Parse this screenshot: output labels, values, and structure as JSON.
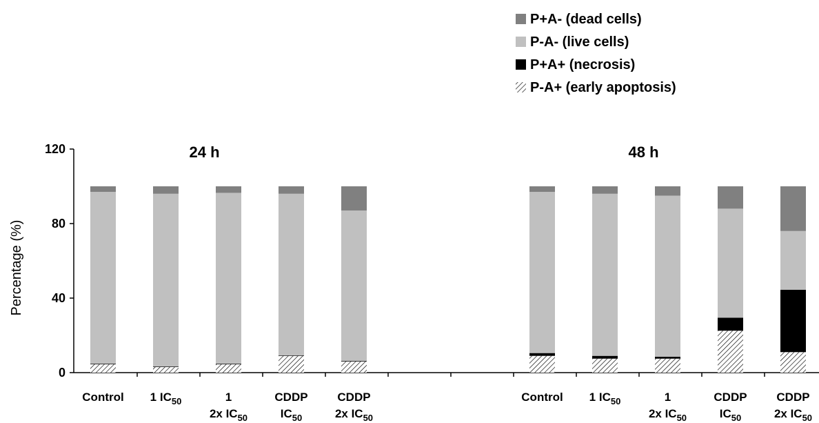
{
  "chart_data": {
    "type": "bar",
    "stacked": true,
    "ylabel": "Percentage (%)",
    "ylim": [
      0,
      120
    ],
    "yticks": [
      0,
      40,
      80,
      120
    ],
    "grid": false,
    "legend_position": "top-right",
    "panels": [
      "24 h",
      "48 h"
    ],
    "categories": [
      {
        "line1": "Control",
        "line2": "",
        "sub": ""
      },
      {
        "line1": "1 IC",
        "line2": "",
        "sub": "50"
      },
      {
        "line1": "1",
        "line2": "2x IC",
        "sub": "50"
      },
      {
        "line1": "CDDP",
        "line2": "IC",
        "sub": "50"
      },
      {
        "line1": "CDDP",
        "line2": "2x IC",
        "sub": "50"
      }
    ],
    "series": [
      {
        "name": "P-A+ (early apoptosis)",
        "key": "early",
        "color": "#ffffff",
        "pattern": "hatch",
        "values_24h": [
          4.5,
          3,
          4.5,
          9,
          6
        ],
        "values_48h": [
          9,
          7.5,
          7.5,
          22.5,
          11
        ]
      },
      {
        "name": "P+A+ (necrosis)",
        "key": "necrosis",
        "color": "#000000",
        "pattern": "solid",
        "values_24h": [
          0.3,
          0.3,
          0.3,
          0.3,
          0.3
        ],
        "values_48h": [
          1.5,
          1.5,
          1,
          7,
          33.5
        ]
      },
      {
        "name": "P-A- (live cells)",
        "key": "live",
        "color": "#c0c0c0",
        "pattern": "solid",
        "values_24h": [
          92.2,
          92.7,
          91.7,
          86.7,
          80.7
        ],
        "values_48h": [
          86.5,
          87,
          86.5,
          58.5,
          31.5
        ]
      },
      {
        "name": "P+A- (dead cells)",
        "key": "dead",
        "color": "#808080",
        "pattern": "solid",
        "values_24h": [
          3,
          4,
          3.5,
          4,
          13
        ],
        "values_48h": [
          3,
          4,
          5,
          12,
          24
        ]
      }
    ]
  }
}
